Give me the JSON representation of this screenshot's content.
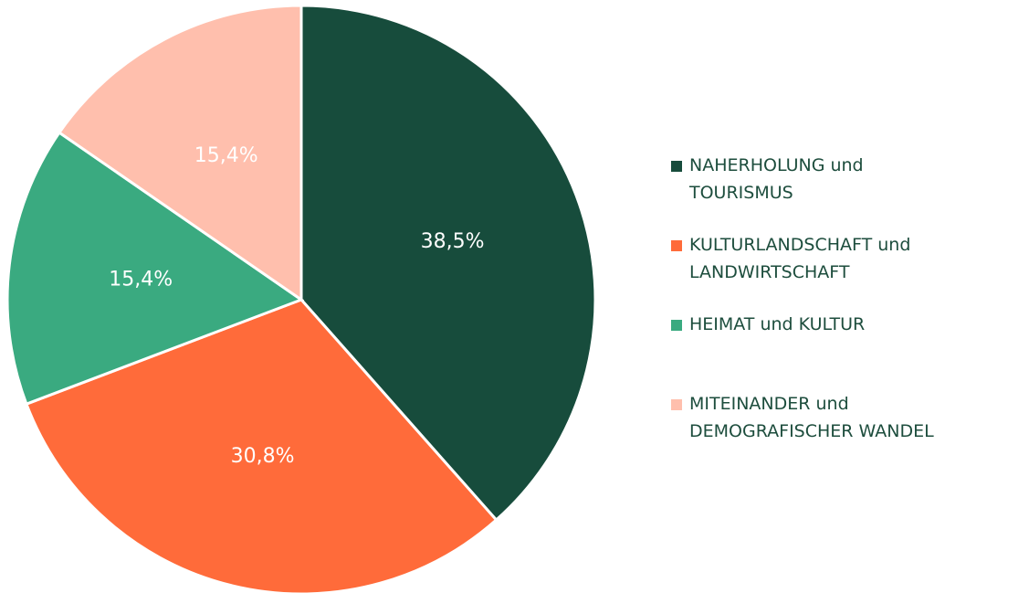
{
  "chart_data": {
    "type": "pie",
    "categories": [
      "NAHERHOLUNG und\nTOURISMUS",
      "KULTURLANDSCHAFT und\nLANDWIRTSCHAFT",
      "HEIMAT und KULTUR",
      "MITEINANDER und\nDEMOGRAFISCHER WANDEL"
    ],
    "values": [
      38.5,
      30.8,
      15.4,
      15.4
    ],
    "value_labels": [
      "38,5%",
      "30,8%",
      "15,4%",
      "15,4%"
    ],
    "colors": [
      "#174c3c",
      "#ff6b3a",
      "#3aaa80",
      "#ffbfad"
    ],
    "legend": "right"
  }
}
